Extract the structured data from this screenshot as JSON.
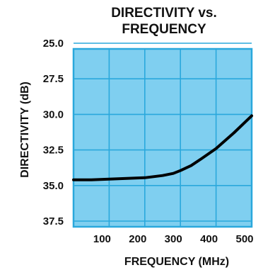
{
  "chart_data": {
    "type": "line",
    "title_lines": [
      "DIRECTIVITY vs.",
      "FREQUENCY"
    ],
    "xlabel": "FREQUENCY (MHz)",
    "ylabel": "DIRECTIVITY (dB)",
    "xlim": [
      0,
      500
    ],
    "ylim": [
      25.0,
      37.5
    ],
    "y_inverted": true,
    "x_ticks": [
      "100",
      "200",
      "300",
      "400",
      "500"
    ],
    "x_tick_values": [
      100,
      200,
      300,
      400,
      500
    ],
    "y_ticks": [
      "25.0",
      "27.5",
      "30.0",
      "32.5",
      "35.0",
      "37.5"
    ],
    "y_tick_values": [
      25.0,
      27.5,
      30.0,
      32.5,
      35.0,
      37.5
    ],
    "grid": true,
    "plot_background": "#7fcff0",
    "grid_color": "#2aa8dc",
    "line_color": "#000000",
    "series": [
      {
        "x": [
          0,
          50,
          100,
          150,
          200,
          250,
          280,
          300,
          330,
          360,
          400,
          450,
          500
        ],
        "y": [
          34.6,
          34.6,
          34.55,
          34.5,
          34.45,
          34.3,
          34.15,
          33.95,
          33.6,
          33.1,
          32.4,
          31.3,
          30.1
        ]
      }
    ]
  }
}
